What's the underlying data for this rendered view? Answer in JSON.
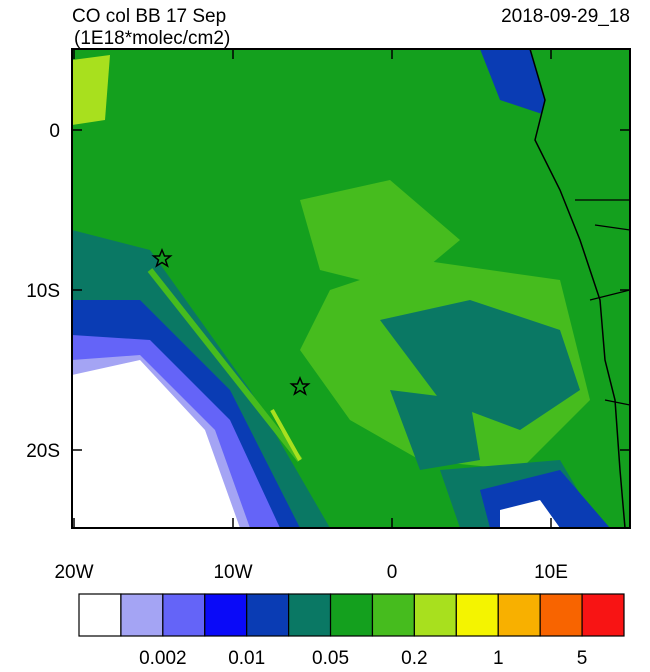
{
  "header": {
    "title": "CO col BB 17 Sep",
    "date": "2018-09-29_18",
    "units": "(1E18*molec/cm2)"
  },
  "map": {
    "lat_ticks": [
      {
        "value": 0,
        "label": "0"
      },
      {
        "value": -10,
        "label": "10S"
      },
      {
        "value": -20,
        "label": "20S"
      }
    ],
    "lon_ticks": [
      {
        "value": -20,
        "label": "20W"
      },
      {
        "value": -10,
        "label": "10W"
      },
      {
        "value": 0,
        "label": "0"
      },
      {
        "value": 10,
        "label": "10E"
      }
    ]
  },
  "colorbar": {
    "colors": [
      "#ffffff",
      "#a4a4f4",
      "#6464f8",
      "#0a0af8",
      "#0a3cb4",
      "#0a7864",
      "#14a01e",
      "#46bc1e",
      "#a8e01e",
      "#f4f400",
      "#f8b000",
      "#f86400",
      "#f81414"
    ],
    "labels": [
      "0.002",
      "0.01",
      "0.05",
      "0.2",
      "1",
      "5"
    ]
  }
}
